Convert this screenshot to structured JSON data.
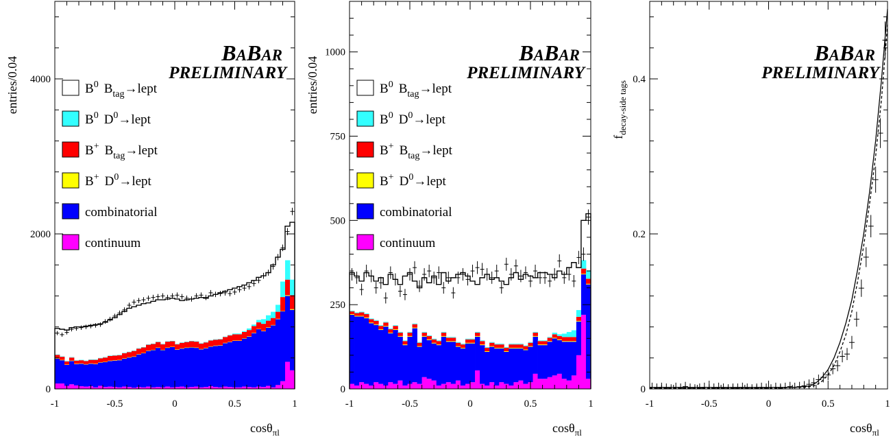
{
  "chart_data": [
    {
      "type": "bar",
      "stacked": true,
      "xlabel": {
        "main": "cos",
        "theta": "θ",
        "sub": "πl"
      },
      "ylabel": "entries/0.04",
      "xlim": [
        -1,
        1
      ],
      "ylim": [
        0,
        5000
      ],
      "xticks": [
        -1,
        -0.5,
        0,
        0.5,
        1
      ],
      "xtick_labels": [
        "-1",
        "-0.5",
        "0",
        "0.5",
        "1"
      ],
      "yticks": [
        0,
        2000,
        4000
      ],
      "ytick_labels": [
        "0",
        "2000",
        "4000"
      ],
      "babar": {
        "b1": "B",
        "a1": "A",
        "b2": "B",
        "a2": "AR"
      },
      "preliminary": "PRELIMINARY",
      "legend": [
        {
          "key": "b0_btag",
          "particle": "B",
          "sup": "0",
          "rest_main": "B",
          "rest_sub": "tag",
          "arrow": "→lept",
          "color": "#ffffff"
        },
        {
          "key": "b0_d0",
          "particle": "B",
          "sup": "0",
          "rest_main": "D",
          "rest_sup": "0",
          "arrow": "→lept",
          "color": "#33ffff"
        },
        {
          "key": "bp_btag",
          "particle": "B",
          "sup": "+",
          "rest_main": "B",
          "rest_sub": "tag",
          "arrow": "→lept",
          "color": "#ff0000"
        },
        {
          "key": "bp_d0",
          "particle": "B",
          "sup": "+",
          "rest_main": "D",
          "rest_sup": "0",
          "arrow": "→lept",
          "color": "#ffff00"
        },
        {
          "key": "combinatorial",
          "label": "combinatorial",
          "color": "#0000ff"
        },
        {
          "key": "continuum",
          "label": "continuum",
          "color": "#ff00ff"
        }
      ],
      "continuum": [
        70,
        70,
        40,
        60,
        45,
        35,
        30,
        35,
        20,
        40,
        25,
        30,
        25,
        20,
        30,
        25,
        15,
        25,
        20,
        30,
        20,
        25,
        20,
        30,
        20,
        25,
        30,
        20,
        25,
        30,
        20,
        25,
        35,
        25,
        20,
        30,
        25,
        20,
        20,
        30,
        25,
        20,
        30,
        25,
        40,
        20,
        50,
        100,
        350,
        240
      ],
      "combinatorial": [
        320,
        300,
        270,
        300,
        275,
        290,
        285,
        290,
        300,
        300,
        320,
        330,
        340,
        350,
        360,
        380,
        400,
        420,
        440,
        460,
        480,
        505,
        480,
        500,
        520,
        480,
        490,
        510,
        510,
        500,
        490,
        500,
        510,
        530,
        540,
        560,
        580,
        600,
        600,
        620,
        650,
        700,
        740,
        720,
        750,
        800,
        850,
        900,
        850,
        780
      ],
      "bp_d0": [
        5,
        5,
        5,
        5,
        5,
        5,
        5,
        5,
        5,
        5,
        5,
        5,
        5,
        5,
        5,
        5,
        5,
        5,
        5,
        5,
        5,
        5,
        5,
        5,
        5,
        5,
        5,
        5,
        5,
        5,
        5,
        5,
        5,
        5,
        5,
        5,
        5,
        5,
        5,
        5,
        5,
        5,
        5,
        5,
        5,
        5,
        5,
        5,
        10,
        10
      ],
      "bp_btag": [
        45,
        40,
        40,
        40,
        40,
        40,
        40,
        45,
        50,
        50,
        55,
        60,
        60,
        60,
        65,
        65,
        70,
        70,
        70,
        75,
        75,
        70,
        70,
        75,
        70,
        65,
        70,
        70,
        75,
        75,
        70,
        70,
        75,
        75,
        75,
        75,
        80,
        80,
        80,
        80,
        80,
        85,
        85,
        90,
        85,
        90,
        90,
        180,
        200,
        180
      ],
      "b0_d0": [
        5,
        5,
        5,
        5,
        5,
        5,
        5,
        5,
        5,
        5,
        5,
        5,
        5,
        5,
        5,
        5,
        5,
        5,
        5,
        5,
        5,
        5,
        5,
        5,
        5,
        5,
        5,
        5,
        5,
        5,
        5,
        5,
        5,
        5,
        5,
        5,
        5,
        10,
        10,
        10,
        20,
        20,
        30,
        60,
        70,
        80,
        90,
        200,
        250,
        200
      ],
      "b0_btag_total": [
        780,
        770,
        760,
        790,
        800,
        800,
        810,
        820,
        830,
        840,
        860,
        890,
        920,
        960,
        1000,
        1040,
        1060,
        1080,
        1100,
        1110,
        1130,
        1150,
        1150,
        1160,
        1170,
        1160,
        1140,
        1150,
        1160,
        1170,
        1180,
        1170,
        1200,
        1220,
        1240,
        1260,
        1280,
        1300,
        1320,
        1340,
        1370,
        1400,
        1440,
        1460,
        1500,
        1600,
        1700,
        1800,
        2100,
        2150
      ],
      "data_points": [
        720,
        700,
        730,
        770,
        780,
        790,
        800,
        810,
        820,
        830,
        870,
        900,
        940,
        980,
        1020,
        1080,
        1120,
        1140,
        1150,
        1170,
        1180,
        1190,
        1200,
        1180,
        1200,
        1210,
        1190,
        1170,
        1160,
        1200,
        1210,
        1180,
        1240,
        1220,
        1230,
        1240,
        1230,
        1250,
        1280,
        1300,
        1320,
        1360,
        1400,
        1460,
        1500,
        1580,
        1700,
        1820,
        2030,
        2290
      ]
    },
    {
      "type": "bar",
      "stacked": true,
      "xlabel": {
        "main": "cos",
        "theta": "θ",
        "sub": "πl"
      },
      "ylabel": "entries/0.04",
      "xlim": [
        -1,
        1
      ],
      "ylim": [
        0,
        1150
      ],
      "xticks": [
        -1,
        -0.5,
        0,
        0.5,
        1
      ],
      "xtick_labels": [
        "-1",
        "-0.5",
        "0",
        "0.5",
        "1"
      ],
      "yticks": [
        0,
        250,
        500,
        750,
        1000
      ],
      "ytick_labels": [
        "0",
        "250",
        "500",
        "750",
        "1000"
      ],
      "babar": {
        "b1": "B",
        "a1": "A",
        "b2": "B",
        "a2": "AR"
      },
      "preliminary": "PRELIMINARY",
      "legend": [
        {
          "key": "b0_btag",
          "particle": "B",
          "sup": "0",
          "rest_main": "B",
          "rest_sub": "tag",
          "arrow": "→lept",
          "color": "#ffffff"
        },
        {
          "key": "b0_d0",
          "particle": "B",
          "sup": "0",
          "rest_main": "D",
          "rest_sup": "0",
          "arrow": "→lept",
          "color": "#33ffff"
        },
        {
          "key": "bp_btag",
          "particle": "B",
          "sup": "+",
          "rest_main": "B",
          "rest_sub": "tag",
          "arrow": "→lept",
          "color": "#ff0000"
        },
        {
          "key": "bp_d0",
          "particle": "B",
          "sup": "+",
          "rest_main": "D",
          "rest_sup": "0",
          "arrow": "→lept",
          "color": "#ffff00"
        },
        {
          "key": "combinatorial",
          "label": "combinatorial",
          "color": "#0000ff"
        },
        {
          "key": "continuum",
          "label": "continuum",
          "color": "#ff00ff"
        }
      ],
      "continuum": [
        15,
        10,
        20,
        15,
        10,
        20,
        15,
        10,
        20,
        15,
        25,
        10,
        15,
        20,
        15,
        35,
        30,
        25,
        10,
        15,
        20,
        15,
        25,
        10,
        15,
        20,
        55,
        15,
        10,
        20,
        10,
        20,
        15,
        10,
        20,
        25,
        15,
        20,
        45,
        30,
        30,
        35,
        40,
        45,
        30,
        25,
        40,
        100,
        220,
        30
      ],
      "combinatorial": [
        205,
        205,
        195,
        195,
        185,
        170,
        160,
        175,
        145,
        160,
        130,
        120,
        140,
        160,
        110,
        120,
        115,
        110,
        120,
        140,
        120,
        125,
        100,
        110,
        120,
        115,
        100,
        115,
        100,
        105,
        110,
        100,
        95,
        110,
        100,
        95,
        100,
        105,
        110,
        100,
        100,
        105,
        110,
        100,
        110,
        115,
        100,
        100,
        120,
        280
      ],
      "bp_d0": [
        2,
        2,
        2,
        2,
        2,
        2,
        2,
        2,
        2,
        2,
        2,
        2,
        2,
        2,
        2,
        2,
        2,
        2,
        2,
        2,
        2,
        2,
        2,
        2,
        2,
        2,
        2,
        2,
        2,
        2,
        2,
        2,
        2,
        2,
        2,
        2,
        2,
        2,
        2,
        2,
        2,
        2,
        2,
        2,
        2,
        2,
        2,
        2,
        2,
        2
      ],
      "bp_btag": [
        8,
        8,
        10,
        10,
        10,
        10,
        10,
        10,
        10,
        10,
        10,
        10,
        10,
        10,
        10,
        10,
        10,
        10,
        10,
        10,
        10,
        10,
        10,
        10,
        10,
        10,
        10,
        10,
        10,
        10,
        10,
        10,
        10,
        10,
        10,
        10,
        10,
        10,
        10,
        10,
        10,
        10,
        10,
        10,
        12,
        12,
        12,
        12,
        15,
        15
      ],
      "b0_d0": [
        2,
        2,
        2,
        2,
        2,
        2,
        2,
        2,
        2,
        2,
        2,
        2,
        2,
        2,
        2,
        2,
        2,
        2,
        2,
        2,
        2,
        2,
        2,
        2,
        2,
        2,
        2,
        2,
        2,
        2,
        2,
        2,
        2,
        2,
        2,
        2,
        2,
        2,
        2,
        2,
        2,
        2,
        5,
        5,
        10,
        15,
        20,
        20,
        25,
        25
      ],
      "b0_btag_total": [
        345,
        335,
        320,
        345,
        335,
        320,
        330,
        310,
        340,
        325,
        310,
        335,
        345,
        320,
        300,
        330,
        315,
        335,
        310,
        345,
        320,
        330,
        340,
        345,
        335,
        320,
        310,
        330,
        340,
        325,
        330,
        320,
        310,
        330,
        345,
        325,
        340,
        335,
        330,
        345,
        345,
        340,
        330,
        350,
        340,
        360,
        375,
        360,
        500,
        520
      ],
      "data_points": [
        340,
        330,
        295,
        350,
        335,
        300,
        315,
        270,
        345,
        325,
        290,
        280,
        340,
        360,
        305,
        340,
        350,
        330,
        345,
        300,
        330,
        285,
        330,
        340,
        325,
        350,
        360,
        355,
        340,
        330,
        350,
        300,
        370,
        340,
        365,
        335,
        345,
        320,
        350,
        330,
        330,
        320,
        340,
        380,
        330,
        340,
        320,
        390,
        400,
        510
      ]
    },
    {
      "type": "line",
      "xlabel": {
        "main": "cos",
        "theta": "θ",
        "sub": "πl"
      },
      "ylabel": {
        "main": "f",
        "sub": "decay-side tags"
      },
      "xlim": [
        -1,
        1
      ],
      "ylim": [
        0,
        0.5
      ],
      "xticks": [
        -1,
        -0.5,
        0,
        0.5,
        1
      ],
      "xtick_labels": [
        "-1",
        "-0.5",
        "0",
        "0.5",
        "1"
      ],
      "yticks": [
        0,
        0.2,
        0.4
      ],
      "ytick_labels": [
        "0",
        "0.2",
        "0.4"
      ],
      "babar": {
        "b1": "B",
        "a1": "A",
        "b2": "B",
        "a2": "AR"
      },
      "preliminary": "PRELIMINARY",
      "series": [
        {
          "style": "solid",
          "x": [
            -1,
            -0.8,
            -0.6,
            -0.4,
            -0.2,
            0,
            0.1,
            0.2,
            0.3,
            0.35,
            0.4,
            0.45,
            0.5,
            0.55,
            0.6,
            0.65,
            0.7,
            0.75,
            0.8,
            0.85,
            0.9,
            0.95,
            1.0
          ],
          "y": [
            0.002,
            0.002,
            0.002,
            0.002,
            0.002,
            0.002,
            0.002,
            0.002,
            0.003,
            0.004,
            0.008,
            0.015,
            0.025,
            0.04,
            0.06,
            0.085,
            0.115,
            0.155,
            0.2,
            0.255,
            0.32,
            0.4,
            0.49
          ]
        },
        {
          "style": "dashed",
          "x": [
            -1,
            -0.8,
            -0.6,
            -0.4,
            -0.2,
            0,
            0.1,
            0.2,
            0.3,
            0.35,
            0.4,
            0.45,
            0.5,
            0.55,
            0.6,
            0.65,
            0.7,
            0.75,
            0.8,
            0.85,
            0.9,
            0.95,
            1.0
          ],
          "y": [
            0.001,
            0.001,
            0.001,
            0.001,
            0.001,
            0.001,
            0.001,
            0.002,
            0.002,
            0.003,
            0.005,
            0.01,
            0.018,
            0.03,
            0.048,
            0.07,
            0.1,
            0.14,
            0.185,
            0.24,
            0.3,
            0.375,
            0.47
          ]
        }
      ],
      "points": {
        "x": [
          -0.98,
          -0.94,
          -0.9,
          -0.86,
          -0.82,
          -0.78,
          -0.74,
          -0.7,
          -0.66,
          -0.62,
          -0.58,
          -0.54,
          -0.5,
          -0.46,
          -0.42,
          -0.38,
          -0.34,
          -0.3,
          -0.26,
          -0.22,
          -0.18,
          -0.14,
          -0.1,
          -0.06,
          -0.02,
          0.02,
          0.06,
          0.1,
          0.14,
          0.18,
          0.22,
          0.26,
          0.3,
          0.34,
          0.38,
          0.42,
          0.46,
          0.5,
          0.54,
          0.58,
          0.62,
          0.66,
          0.7,
          0.74,
          0.78,
          0.82,
          0.86,
          0.9,
          0.94,
          0.98
        ],
        "y": [
          0.002,
          0.001,
          0.002,
          0.001,
          0.0,
          0.002,
          0.001,
          0.003,
          0.001,
          0.0,
          0.001,
          0.002,
          0.0,
          0.001,
          0.002,
          0.001,
          0.0,
          0.001,
          0.001,
          0.002,
          0.001,
          0.0,
          0.001,
          0.002,
          0.001,
          0.0,
          0.002,
          0.001,
          0.002,
          0.003,
          0.002,
          0.003,
          0.004,
          0.006,
          0.008,
          0.012,
          0.015,
          0.018,
          0.026,
          0.03,
          0.042,
          0.045,
          0.06,
          0.09,
          0.13,
          0.17,
          0.21,
          0.27,
          0.33,
          0.45
        ]
      }
    }
  ]
}
